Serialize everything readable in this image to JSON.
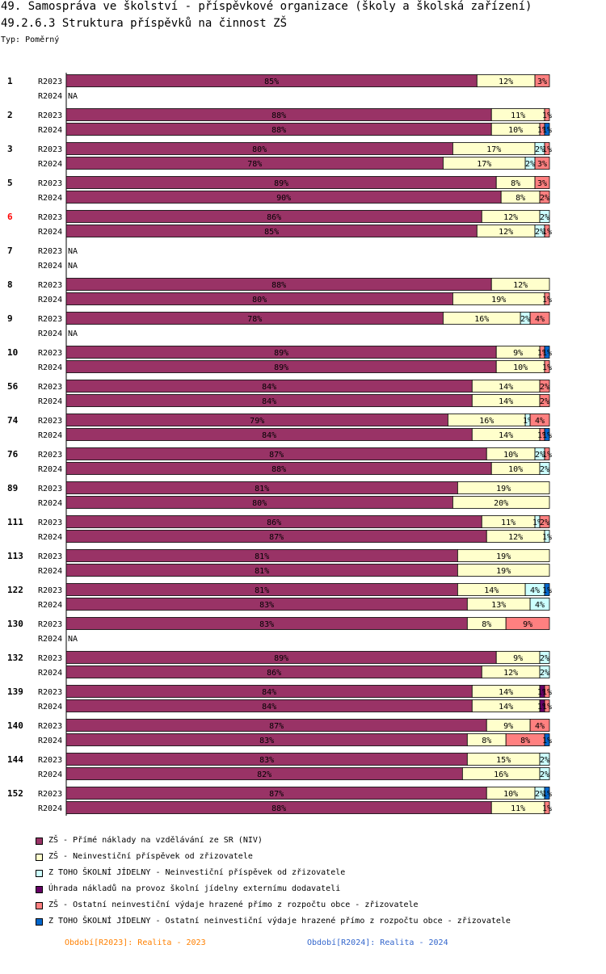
{
  "header": {
    "title_line1": "49. Samospráva ve školství - příspěvkové organizace (školy a školská zařízení)",
    "title_line2": "49.2.6.3 Struktura příspěvků na činnost ZŠ",
    "type_label": "Typ: Poměrný"
  },
  "legend": [
    {
      "label": "ZŠ - Přímé náklady na vzdělávání ze SR (NIV)",
      "color": "#993366"
    },
    {
      "label": "ZŠ - Neinvestiční příspěvek od zřizovatele",
      "color": "#ffffcc"
    },
    {
      "label": "Z TOHO ŠKOLNÍ JÍDELNY - Neinvestiční příspěvek od zřizovatele",
      "color": "#ccffff"
    },
    {
      "label": "Úhrada nákladů na provoz školní jídelny externímu dodavateli",
      "color": "#660066"
    },
    {
      "label": "ZŠ - Ostatní neinvestiční výdaje hrazené přímo z rozpočtu obce - zřizovatele",
      "color": "#ff8080"
    },
    {
      "label": "Z TOHO ŠKOLNÍ JÍDELNY - Ostatní neinvestiční výdaje hrazené přímo z rozpočtu obce - zřizovatele",
      "color": "#0066cc"
    }
  ],
  "periods": [
    {
      "text": "Období[R2023]: Realita - 2023",
      "color": "#ff8000"
    },
    {
      "text": "Období[R2024]: Realita - 2024",
      "color": "#3366cc"
    }
  ],
  "na_text": "NA",
  "chart_data": {
    "type": "bar",
    "stacked": true,
    "orientation": "horizontal",
    "unit": "%",
    "xlim": [
      0,
      100
    ],
    "series_names": [
      "ZŠ - Přímé náklady na vzdělávání ze SR (NIV)",
      "ZŠ - Neinvestiční příspěvek od zřizovatele",
      "Z TOHO ŠKOLNÍ JÍDELNY - Neinvestiční příspěvek od zřizovatele",
      "Úhrada nákladů na provoz školní jídelny externímu dodavateli",
      "ZŠ - Ostatní neinvestiční výdaje hrazené přímo z rozpočtu obce - zřizovatele",
      "Z TOHO ŠKOLNÍ JÍDELNY - Ostatní neinvestiční výdaje hrazené přímo z rozpočtu obce - zřizovatele"
    ],
    "groups": [
      {
        "id": "1",
        "highlight": false,
        "rows": [
          {
            "period": "R2023",
            "values": [
              85,
              12,
              0,
              0,
              3,
              0
            ]
          },
          {
            "period": "R2024",
            "values": null
          }
        ]
      },
      {
        "id": "2",
        "highlight": false,
        "rows": [
          {
            "period": "R2023",
            "values": [
              88,
              11,
              0,
              0,
              1,
              0
            ]
          },
          {
            "period": "R2024",
            "values": [
              88,
              10,
              0,
              0,
              1,
              1
            ]
          }
        ]
      },
      {
        "id": "3",
        "highlight": false,
        "rows": [
          {
            "period": "R2023",
            "values": [
              80,
              17,
              2,
              0,
              1,
              0
            ]
          },
          {
            "period": "R2024",
            "values": [
              78,
              17,
              2,
              0,
              3,
              0
            ]
          }
        ]
      },
      {
        "id": "5",
        "highlight": false,
        "rows": [
          {
            "period": "R2023",
            "values": [
              89,
              8,
              0,
              0,
              3,
              0
            ]
          },
          {
            "period": "R2024",
            "values": [
              90,
              8,
              0,
              0,
              2,
              0
            ]
          }
        ]
      },
      {
        "id": "6",
        "highlight": true,
        "rows": [
          {
            "period": "R2023",
            "values": [
              86,
              12,
              2,
              0,
              0,
              0
            ]
          },
          {
            "period": "R2024",
            "values": [
              85,
              12,
              2,
              0,
              1,
              0
            ]
          }
        ]
      },
      {
        "id": "7",
        "highlight": false,
        "rows": [
          {
            "period": "R2023",
            "values": null
          },
          {
            "period": "R2024",
            "values": null
          }
        ]
      },
      {
        "id": "8",
        "highlight": false,
        "rows": [
          {
            "period": "R2023",
            "values": [
              88,
              12,
              0,
              0,
              0,
              0
            ]
          },
          {
            "period": "R2024",
            "values": [
              80,
              19,
              0,
              0,
              1,
              0
            ]
          }
        ]
      },
      {
        "id": "9",
        "highlight": false,
        "rows": [
          {
            "period": "R2023",
            "values": [
              78,
              16,
              2,
              0,
              4,
              0
            ]
          },
          {
            "period": "R2024",
            "values": null
          }
        ]
      },
      {
        "id": "10",
        "highlight": false,
        "rows": [
          {
            "period": "R2023",
            "values": [
              89,
              9,
              0,
              0,
              1,
              1
            ]
          },
          {
            "period": "R2024",
            "values": [
              89,
              10,
              0,
              0,
              1,
              0
            ]
          }
        ]
      },
      {
        "id": "56",
        "highlight": false,
        "rows": [
          {
            "period": "R2023",
            "values": [
              84,
              14,
              0,
              0,
              2,
              0
            ]
          },
          {
            "period": "R2024",
            "values": [
              84,
              14,
              0,
              0,
              2,
              0
            ]
          }
        ]
      },
      {
        "id": "74",
        "highlight": false,
        "rows": [
          {
            "period": "R2023",
            "values": [
              79,
              16,
              1,
              0,
              4,
              0
            ]
          },
          {
            "period": "R2024",
            "values": [
              84,
              14,
              0,
              0,
              1,
              1
            ]
          }
        ]
      },
      {
        "id": "76",
        "highlight": false,
        "rows": [
          {
            "period": "R2023",
            "values": [
              87,
              10,
              2,
              0,
              1,
              0
            ]
          },
          {
            "period": "R2024",
            "values": [
              88,
              10,
              2,
              0,
              0,
              0
            ]
          }
        ]
      },
      {
        "id": "89",
        "highlight": false,
        "rows": [
          {
            "period": "R2023",
            "values": [
              81,
              19,
              0,
              0,
              0,
              0
            ]
          },
          {
            "period": "R2024",
            "values": [
              80,
              20,
              0,
              0,
              0,
              0
            ]
          }
        ]
      },
      {
        "id": "111",
        "highlight": false,
        "rows": [
          {
            "period": "R2023",
            "values": [
              86,
              11,
              1,
              0,
              2,
              0
            ]
          },
          {
            "period": "R2024",
            "values": [
              87,
              12,
              1,
              0,
              0,
              0
            ]
          }
        ]
      },
      {
        "id": "113",
        "highlight": false,
        "rows": [
          {
            "period": "R2023",
            "values": [
              81,
              19,
              0,
              0,
              0,
              0
            ]
          },
          {
            "period": "R2024",
            "values": [
              81,
              19,
              0,
              0,
              0,
              0
            ]
          }
        ]
      },
      {
        "id": "122",
        "highlight": false,
        "rows": [
          {
            "period": "R2023",
            "values": [
              81,
              14,
              4,
              0,
              0,
              1
            ]
          },
          {
            "period": "R2024",
            "values": [
              83,
              13,
              4,
              0,
              0,
              0
            ]
          }
        ]
      },
      {
        "id": "130",
        "highlight": false,
        "rows": [
          {
            "period": "R2023",
            "values": [
              83,
              8,
              0,
              0,
              9,
              0
            ]
          },
          {
            "period": "R2024",
            "values": null
          }
        ]
      },
      {
        "id": "132",
        "highlight": false,
        "rows": [
          {
            "period": "R2023",
            "values": [
              89,
              9,
              2,
              0,
              0,
              0
            ]
          },
          {
            "period": "R2024",
            "values": [
              86,
              12,
              2,
              0,
              0,
              0
            ]
          }
        ]
      },
      {
        "id": "139",
        "highlight": false,
        "rows": [
          {
            "period": "R2023",
            "values": [
              84,
              14,
              0,
              1,
              1,
              0
            ]
          },
          {
            "period": "R2024",
            "values": [
              84,
              14,
              0,
              1,
              1,
              0
            ]
          }
        ]
      },
      {
        "id": "140",
        "highlight": false,
        "rows": [
          {
            "period": "R2023",
            "values": [
              87,
              9,
              0,
              0,
              4,
              0
            ]
          },
          {
            "period": "R2024",
            "values": [
              83,
              8,
              0,
              0,
              8,
              1
            ]
          }
        ]
      },
      {
        "id": "144",
        "highlight": false,
        "rows": [
          {
            "period": "R2023",
            "values": [
              83,
              15,
              2,
              0,
              0,
              0
            ]
          },
          {
            "period": "R2024",
            "values": [
              82,
              16,
              2,
              0,
              0,
              0
            ]
          }
        ]
      },
      {
        "id": "152",
        "highlight": false,
        "rows": [
          {
            "period": "R2023",
            "values": [
              87,
              10,
              2,
              0,
              0,
              1
            ]
          },
          {
            "period": "R2024",
            "values": [
              88,
              11,
              0,
              0,
              1,
              0
            ]
          }
        ]
      }
    ]
  }
}
